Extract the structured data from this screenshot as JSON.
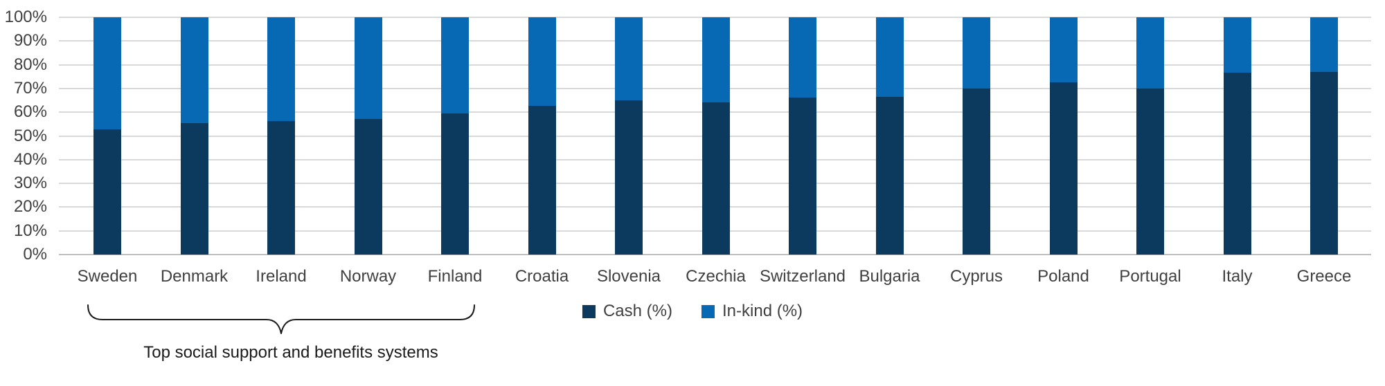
{
  "chart_data": {
    "type": "bar",
    "stacked": true,
    "title": "",
    "xlabel": "",
    "ylabel": "",
    "categories": [
      "Sweden",
      "Denmark",
      "Ireland",
      "Norway",
      "Finland",
      "Croatia",
      "Slovenia",
      "Czechia",
      "Switzerland",
      "Bulgaria",
      "Cyprus",
      "Poland",
      "Portugal",
      "Italy",
      "Greece"
    ],
    "series": [
      {
        "name": "Cash (%)",
        "color": "#0c3a5e",
        "values": [
          52.7,
          55.4,
          56.4,
          57.1,
          59.6,
          62.7,
          64.9,
          64.0,
          66.1,
          66.4,
          70.1,
          72.7,
          70.0,
          76.6,
          77.0
        ]
      },
      {
        "name": "In-kind (%)",
        "color": "#0768b3",
        "values": [
          47.3,
          44.6,
          43.6,
          42.9,
          40.4,
          37.3,
          35.1,
          36.0,
          33.9,
          33.6,
          29.9,
          27.3,
          30.0,
          23.4,
          23.0
        ]
      }
    ],
    "ylim": [
      0,
      100
    ],
    "y_tick_labels": [
      "100%",
      "90%",
      "80%",
      "70%",
      "60%",
      "50%",
      "40%",
      "30%",
      "20%",
      "10%",
      "0%"
    ],
    "grid": true,
    "legend_position": "bottom-center",
    "annotation": {
      "text": "Top social support and benefits systems",
      "bracket_from": "Sweden",
      "bracket_to": "Finland"
    }
  },
  "legend": {
    "items": [
      {
        "label": "Cash (%)",
        "color": "#0c3a5e"
      },
      {
        "label": "In-kind (%)",
        "color": "#0768b3"
      }
    ]
  },
  "colors": {
    "cash": "#0c3a5e",
    "inkind": "#0768b3",
    "gridline": "#d9d9d9",
    "axis_line": "#bfbfbf",
    "tick_text": "#404040",
    "annotation_text": "#1a1a1a"
  }
}
